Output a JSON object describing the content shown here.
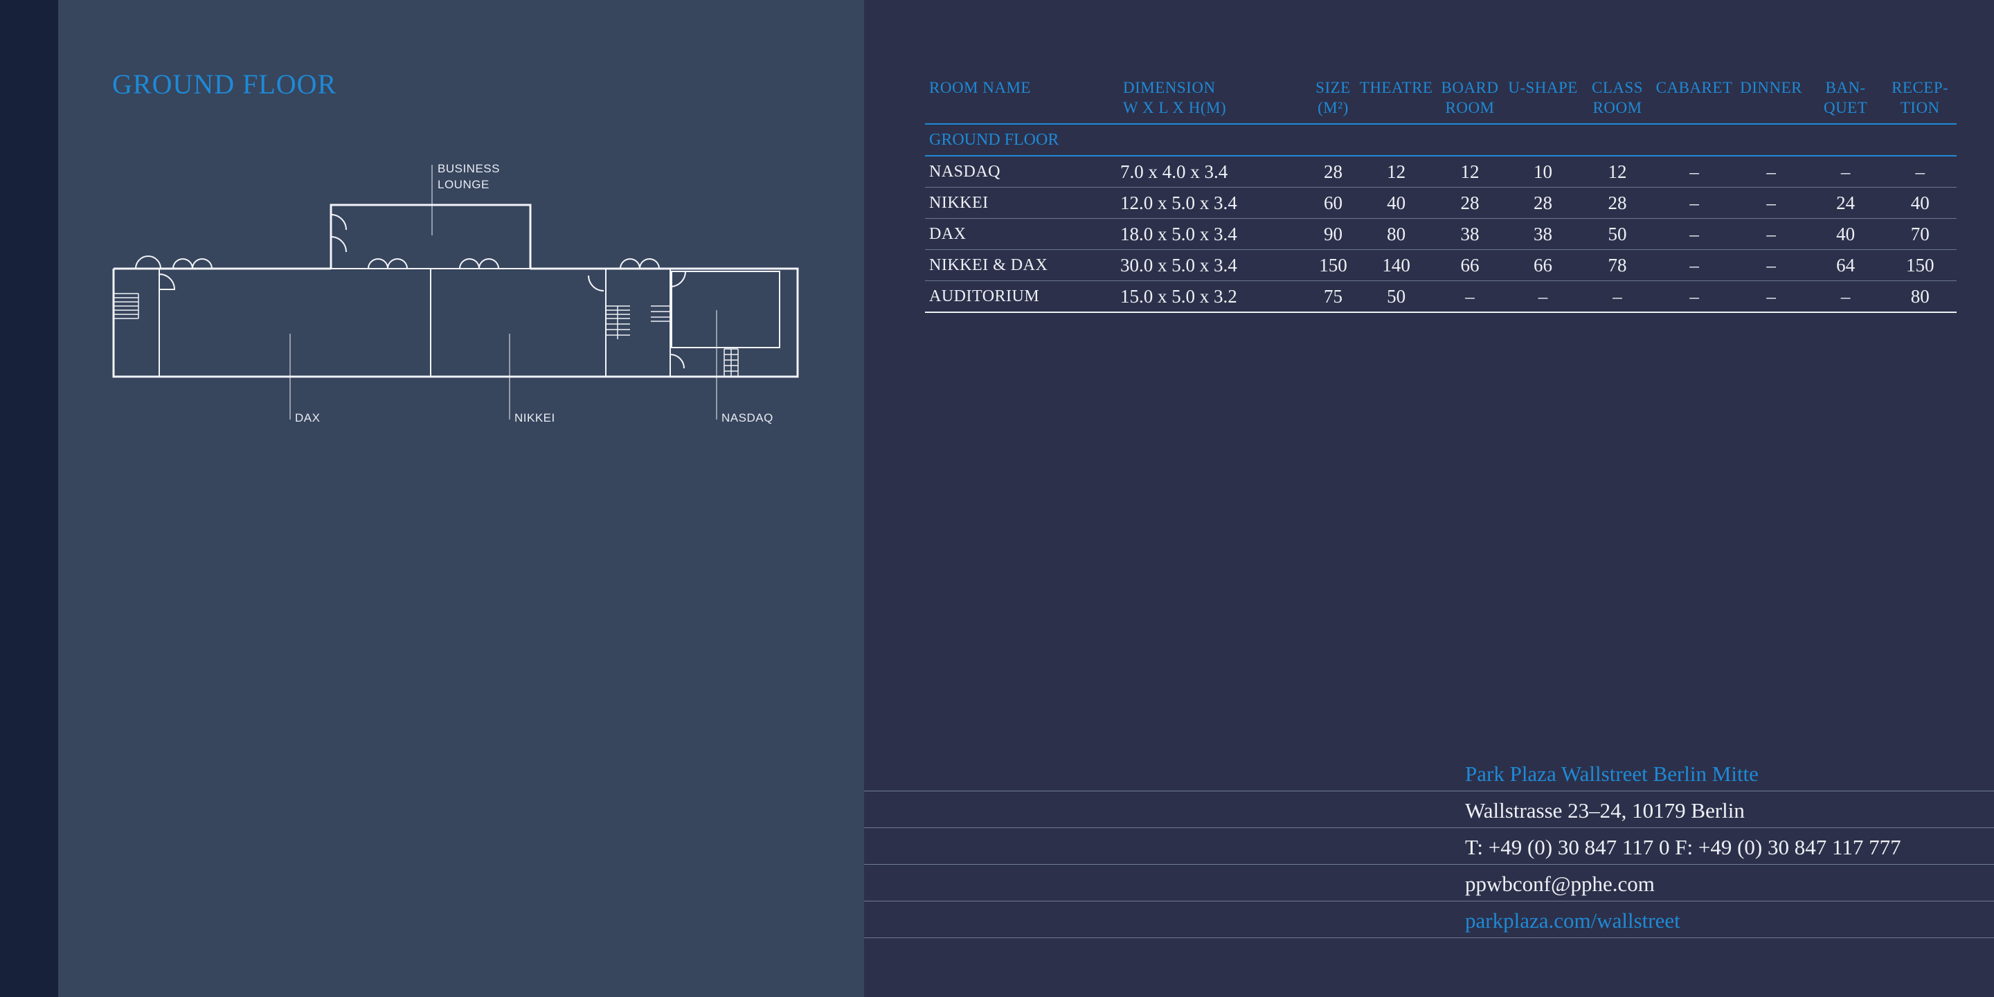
{
  "floor_title": "GROUND FLOOR",
  "plan_labels": {
    "business_lounge": [
      "BUSINESS",
      "LOUNGE"
    ],
    "dax": "DAX",
    "nikkei": "NIKKEI",
    "nasdaq": "NASDAQ"
  },
  "table": {
    "headers": [
      [
        "ROOM NAME"
      ],
      [
        "DIMENSION",
        "W X L X H(M)"
      ],
      [
        "SIZE",
        "(M²)"
      ],
      [
        "THEATRE"
      ],
      [
        "BOARD",
        "ROOM"
      ],
      [
        "U-SHAPE"
      ],
      [
        "CLASS",
        "ROOM"
      ],
      [
        "CABARET"
      ],
      [
        "DINNER"
      ],
      [
        "BAN-",
        "QUET"
      ],
      [
        "RECEP-",
        "TION"
      ]
    ],
    "section": "GROUND FLOOR",
    "rows": [
      [
        "NASDAQ",
        "7.0 x 4.0 x 3.4",
        "28",
        "12",
        "12",
        "10",
        "12",
        "–",
        "–",
        "–",
        "–"
      ],
      [
        "NIKKEI",
        "12.0 x 5.0 x 3.4",
        "60",
        "40",
        "28",
        "28",
        "28",
        "–",
        "–",
        "24",
        "40"
      ],
      [
        "DAX",
        "18.0 x 5.0 x 3.4",
        "90",
        "80",
        "38",
        "38",
        "50",
        "–",
        "–",
        "40",
        "70"
      ],
      [
        "NIKKEI & DAX",
        "30.0 x 5.0 x 3.4",
        "150",
        "140",
        "66",
        "66",
        "78",
        "–",
        "–",
        "64",
        "150"
      ],
      [
        "AUDITORIUM",
        "15.0 x 5.0 x 3.2",
        "75",
        "50",
        "–",
        "–",
        "–",
        "–",
        "–",
        "–",
        "80"
      ]
    ]
  },
  "contact": {
    "hotel_name": "Park Plaza Wallstreet Berlin Mitte",
    "address": "Wallstrasse 23–24, 10179 Berlin",
    "phone": "T: +49 (0) 30 847 117 0  F: +49 (0) 30 847 117 777",
    "email": "ppwbconf@pphe.com",
    "website": "parkplaza.com/wallstreet"
  },
  "colors": {
    "accent_blue": "#1e8ad6",
    "left_panel": "#37455d",
    "right_panel": "#2d304a",
    "edge_strip": "#17223a"
  }
}
